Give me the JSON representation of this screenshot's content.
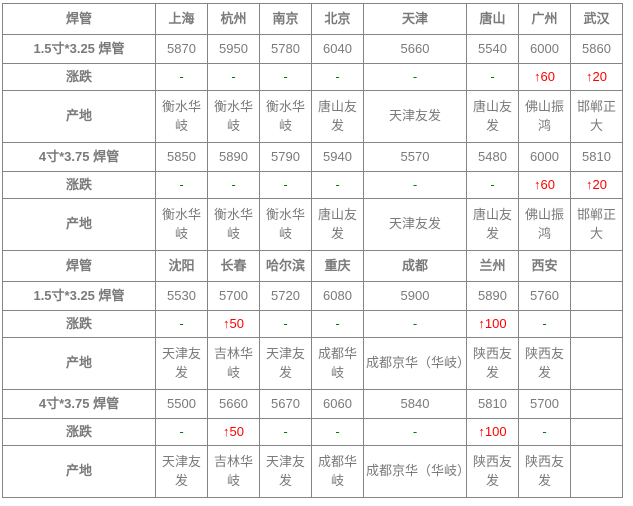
{
  "colors": {
    "header_red": "#ff0000",
    "city_blue": "#0000ff",
    "flat_green": "#008000",
    "up_red": "#ff0000",
    "border_inner": "#858585",
    "border_outer": "#3c3c3c",
    "label_dark": "#3f3f3f",
    "value_gray": "#7f7f7f"
  },
  "chart_data": {
    "type": "table",
    "sections": [
      {
        "header": {
          "label": "焊管",
          "cities": [
            "上海",
            "杭州",
            "南京",
            "北京",
            "天津",
            "唐山",
            "广州",
            "武汉"
          ]
        },
        "rows": [
          {
            "label": "1.5寸*3.25 焊管",
            "type": "price",
            "values": [
              "5870",
              "5950",
              "5780",
              "6040",
              "5660",
              "5540",
              "6000",
              "5860"
            ]
          },
          {
            "label": "涨跌",
            "type": "change",
            "values": [
              "-",
              "-",
              "-",
              "-",
              "-",
              "-",
              "↑60",
              "↑20"
            ]
          },
          {
            "label": "产地",
            "type": "origin",
            "values": [
              "衡水华岐",
              "衡水华岐",
              "衡水华岐",
              "唐山友发",
              "天津友发",
              "唐山友发",
              "佛山振鸿",
              "邯郸正大"
            ]
          },
          {
            "label": "4寸*3.75 焊管",
            "type": "price",
            "values": [
              "5850",
              "5890",
              "5790",
              "5940",
              "5570",
              "5480",
              "6000",
              "5810"
            ]
          },
          {
            "label": "涨跌",
            "type": "change",
            "values": [
              "-",
              "-",
              "-",
              "-",
              "-",
              "-",
              "↑60",
              "↑20"
            ]
          },
          {
            "label": "产地",
            "type": "origin",
            "values": [
              "衡水华岐",
              "衡水华岐",
              "衡水华岐",
              "唐山友发",
              "天津友发",
              "唐山友发",
              "佛山振鸿",
              "邯郸正大"
            ]
          }
        ]
      },
      {
        "header": {
          "label": "焊管",
          "cities": [
            "沈阳",
            "长春",
            "哈尔滨",
            "重庆",
            "成都",
            "兰州",
            "西安",
            ""
          ]
        },
        "rows": [
          {
            "label": "1.5寸*3.25 焊管",
            "type": "price",
            "values": [
              "5530",
              "5700",
              "5720",
              "6080",
              "5900",
              "5890",
              "5760",
              ""
            ]
          },
          {
            "label": "涨跌",
            "type": "change",
            "values": [
              "-",
              "↑50",
              "-",
              "-",
              "-",
              "↑100",
              "-",
              ""
            ]
          },
          {
            "label": "产地",
            "type": "origin",
            "values": [
              "天津友发",
              "吉林华岐",
              "天津友发",
              "成都华岐",
              "成都京华（华岐）",
              "陕西友发",
              "陕西友发",
              ""
            ]
          },
          {
            "label": "4寸*3.75 焊管",
            "type": "price",
            "values": [
              "5500",
              "5660",
              "5670",
              "6060",
              "5840",
              "5810",
              "5700",
              ""
            ]
          },
          {
            "label": "涨跌",
            "type": "change",
            "values": [
              "-",
              "↑50",
              "-",
              "-",
              "-",
              "↑100",
              "-",
              ""
            ]
          },
          {
            "label": "产地",
            "type": "origin",
            "values": [
              "天津友发",
              "吉林华岐",
              "天津友发",
              "成都华岐",
              "成都京华（华岐）",
              "陕西友发",
              "陕西友发",
              ""
            ]
          }
        ]
      }
    ]
  }
}
